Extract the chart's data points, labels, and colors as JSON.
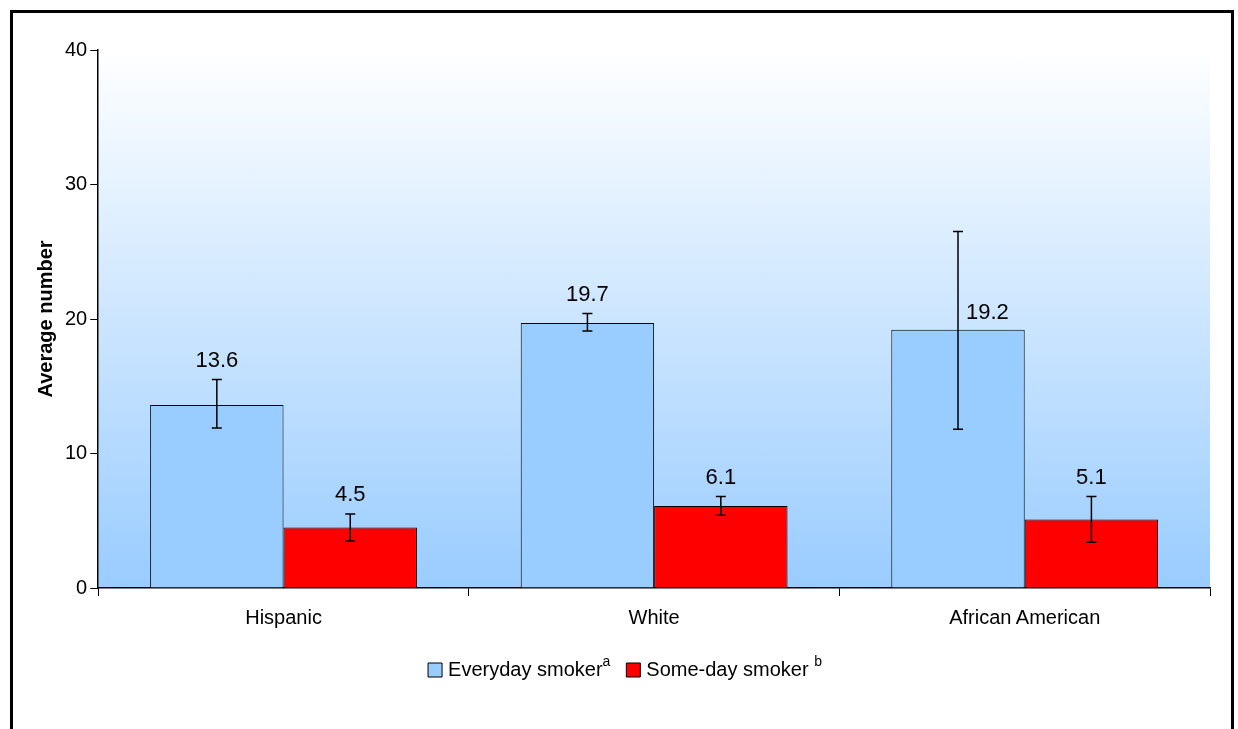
{
  "chart_data": {
    "type": "bar",
    "ylabel": "Average number",
    "categories": [
      "Hispanic",
      "White",
      "African American"
    ],
    "series": [
      {
        "name": "Everyday smoker$^{a}$",
        "color": "#99ccff",
        "values": [
          13.6,
          19.7,
          19.2
        ],
        "errors": [
          [
            11.9,
            15.5
          ],
          [
            19.1,
            20.4
          ],
          [
            11.8,
            26.5
          ]
        ]
      },
      {
        "name": "Some-day smoker $^{b}$",
        "color": "#ff0000",
        "values": [
          4.5,
          6.1,
          5.1
        ],
        "errors": [
          [
            3.5,
            5.5
          ],
          [
            5.4,
            6.8
          ],
          [
            3.4,
            6.8
          ]
        ]
      }
    ],
    "ylim": [
      0,
      40
    ],
    "yticks": [
      0,
      10,
      20,
      30,
      40
    ],
    "grid": false,
    "legend": "bottom",
    "data_labels": true
  }
}
